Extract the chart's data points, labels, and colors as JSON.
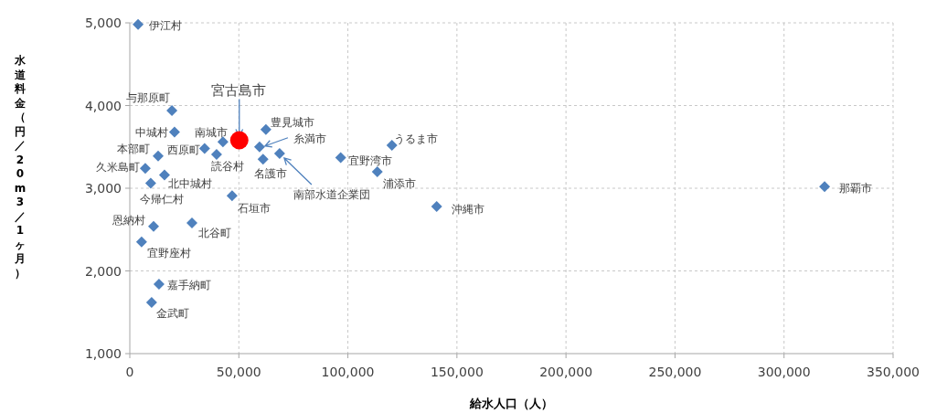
{
  "chart_data": {
    "type": "scatter",
    "xlabel": "給水人口（人）",
    "ylabel": "水道料金（円／20m3／1ヶ月）",
    "xlim": [
      0,
      350000
    ],
    "ylim": [
      1000,
      5000
    ],
    "xticks": [
      {
        "value": 0,
        "label": "0"
      },
      {
        "value": 50000,
        "label": "50,000"
      },
      {
        "value": 100000,
        "label": "100,000"
      },
      {
        "value": 150000,
        "label": "150,000"
      },
      {
        "value": 200000,
        "label": "200,000"
      },
      {
        "value": 250000,
        "label": "250,000"
      },
      {
        "value": 300000,
        "label": "300,000"
      },
      {
        "value": 350000,
        "label": "350,000"
      }
    ],
    "yticks": [
      {
        "value": 1000,
        "label": "1,000"
      },
      {
        "value": 2000,
        "label": "2,000"
      },
      {
        "value": 3000,
        "label": "3,000"
      },
      {
        "value": 4000,
        "label": "4,000"
      },
      {
        "value": 5000,
        "label": "5,000"
      }
    ],
    "grid": true,
    "marker": "diamond",
    "series": [
      {
        "color": "#4f81bd",
        "x": [
          3800,
          19300,
          20500,
          13000,
          7100,
          15900,
          9600,
          10900,
          5400,
          13400,
          10000,
          28500,
          46900,
          34300,
          39800,
          42700,
          62400,
          59500,
          61100,
          68700,
          96700,
          120200,
          113500,
          140700,
          318600
        ],
        "values": [
          4980,
          3940,
          3680,
          3390,
          3240,
          3160,
          3060,
          2540,
          2350,
          1840,
          1620,
          2580,
          2910,
          3480,
          3410,
          3560,
          3710,
          3500,
          3350,
          3420,
          3370,
          3520,
          3200,
          2780,
          3020
        ]
      },
      {
        "color": "#ff0000",
        "marker": "circle",
        "x": [
          50200
        ],
        "values": [
          3580
        ]
      }
    ],
    "annotations": [
      {
        "text": "伊江村",
        "x": 3800,
        "y": 4980
      },
      {
        "text": "与那原町",
        "x": 19300,
        "y": 3940
      },
      {
        "text": "中城村",
        "x": 20500,
        "y": 3680
      },
      {
        "text": "本部町",
        "x": 13000,
        "y": 3390
      },
      {
        "text": "久米島町",
        "x": 7100,
        "y": 3240
      },
      {
        "text": "北中城村",
        "x": 15900,
        "y": 3160
      },
      {
        "text": "今帰仁村",
        "x": 9600,
        "y": 3060
      },
      {
        "text": "恩納村",
        "x": 10900,
        "y": 2540
      },
      {
        "text": "宜野座村",
        "x": 5400,
        "y": 2350
      },
      {
        "text": "嘉手納町",
        "x": 13400,
        "y": 1840
      },
      {
        "text": "金武町",
        "x": 10000,
        "y": 1620
      },
      {
        "text": "北谷町",
        "x": 28500,
        "y": 2580
      },
      {
        "text": "石垣市",
        "x": 46900,
        "y": 2910
      },
      {
        "text": "西原町",
        "x": 34300,
        "y": 3480
      },
      {
        "text": "読谷村",
        "x": 39800,
        "y": 3410
      },
      {
        "text": "南城市",
        "x": 42700,
        "y": 3560
      },
      {
        "text": "豊見城市",
        "x": 62400,
        "y": 3710
      },
      {
        "text": "糸満市",
        "x": 59500,
        "y": 3500
      },
      {
        "text": "名護市",
        "x": 61100,
        "y": 3350
      },
      {
        "text": "南部水道企業団",
        "x": 68700,
        "y": 3420
      },
      {
        "text": "宜野湾市",
        "x": 96700,
        "y": 3370
      },
      {
        "text": "うるま市",
        "x": 120200,
        "y": 3520
      },
      {
        "text": "浦添市",
        "x": 113500,
        "y": 3200
      },
      {
        "text": "沖縄市",
        "x": 140700,
        "y": 2780
      },
      {
        "text": "那覇市",
        "x": 318600,
        "y": 3020
      },
      {
        "text": "宮古島市",
        "x": 50200,
        "y": 3580
      }
    ]
  }
}
